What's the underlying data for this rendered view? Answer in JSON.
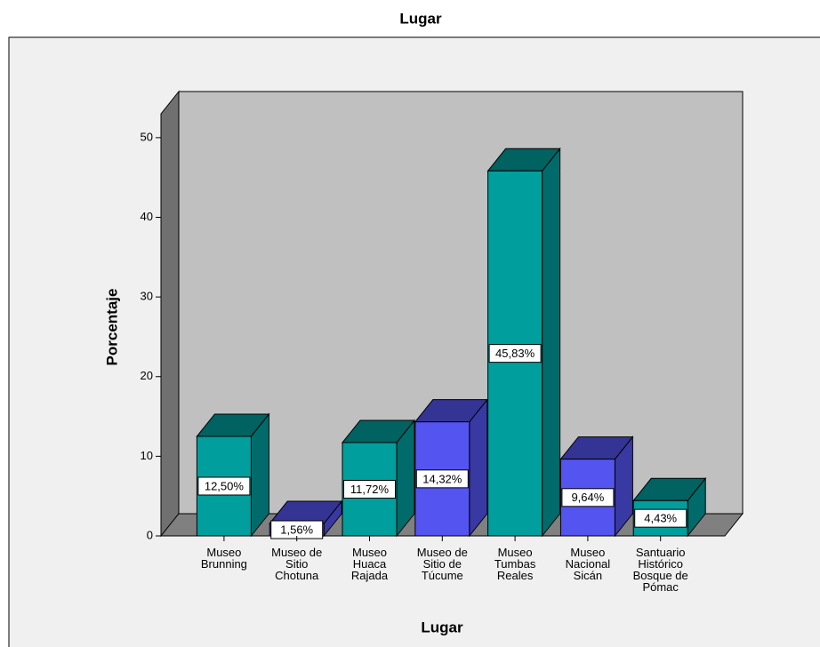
{
  "chart_data": {
    "type": "bar3d",
    "title": "Lugar",
    "x_label": "Lugar",
    "y_label": "Porcentaje",
    "categories": [
      "Museo\nBrunning",
      "Museo de\nSitio\nChotuna",
      "Museo\nHuaca\nRajada",
      "Museo de\nSitio de\nTúcume",
      "Museo\nTumbas\nReales",
      "Museo\nNacional\nSicán",
      "Santuario\nHistórico\nBosque de\nPómac"
    ],
    "values": [
      12.5,
      1.56,
      11.72,
      14.32,
      45.83,
      9.64,
      4.43
    ],
    "value_labels": [
      "12,50%",
      "1,56%",
      "11,72%",
      "14,32%",
      "45,83%",
      "9,64%",
      "4,43%"
    ],
    "colors": [
      "#009e9c",
      "#5454f0",
      "#009e9c",
      "#5454f0",
      "#009e9c",
      "#5454f0",
      "#009e9c"
    ],
    "ylim": [
      0,
      53
    ],
    "yticks": [
      0,
      10,
      20,
      30,
      40,
      50
    ]
  }
}
